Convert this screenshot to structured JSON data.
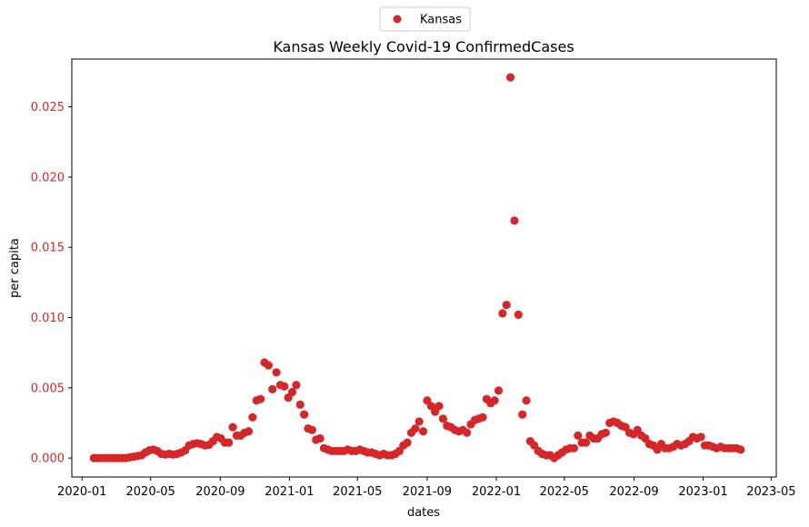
{
  "chart_data": {
    "type": "scatter",
    "title": "Kansas Weekly Covid-19 ConfirmedCases",
    "xlabel": "dates",
    "ylabel": "per capita",
    "legend": {
      "placement": "upper-center-outside",
      "entries": [
        "Kansas"
      ]
    },
    "grid": false,
    "colors": {
      "series": "#d62728",
      "ytick": "#d62728",
      "axis": "#000000"
    },
    "xlim": [
      "2019-12-14",
      "2023-05-10"
    ],
    "ylim": [
      -0.00135,
      0.0284
    ],
    "xticks": [
      {
        "date": "2020-01-01",
        "label": "2020-01"
      },
      {
        "date": "2020-05-01",
        "label": "2020-05"
      },
      {
        "date": "2020-09-01",
        "label": "2020-09"
      },
      {
        "date": "2021-01-01",
        "label": "2021-01"
      },
      {
        "date": "2021-05-01",
        "label": "2021-05"
      },
      {
        "date": "2021-09-01",
        "label": "2021-09"
      },
      {
        "date": "2022-01-01",
        "label": "2022-01"
      },
      {
        "date": "2022-05-01",
        "label": "2022-05"
      },
      {
        "date": "2022-09-01",
        "label": "2022-09"
      },
      {
        "date": "2023-01-01",
        "label": "2023-01"
      },
      {
        "date": "2023-05-01",
        "label": "2023-05"
      }
    ],
    "yticks": [
      {
        "value": 0.0,
        "label": "0.000"
      },
      {
        "value": 0.005,
        "label": "0.005"
      },
      {
        "value": 0.01,
        "label": "0.010"
      },
      {
        "value": 0.015,
        "label": "0.015"
      },
      {
        "value": 0.02,
        "label": "0.020"
      },
      {
        "value": 0.025,
        "label": "0.025"
      }
    ],
    "series": [
      {
        "name": "Kansas",
        "points": [
          [
            "2020-01-22",
            0.0
          ],
          [
            "2020-01-29",
            0.0
          ],
          [
            "2020-02-05",
            0.0
          ],
          [
            "2020-02-12",
            0.0
          ],
          [
            "2020-02-19",
            0.0
          ],
          [
            "2020-02-26",
            0.0
          ],
          [
            "2020-03-04",
            0.0
          ],
          [
            "2020-03-11",
            0.0
          ],
          [
            "2020-03-18",
            0.0
          ],
          [
            "2020-03-25",
            5e-05
          ],
          [
            "2020-04-01",
            0.0001
          ],
          [
            "2020-04-08",
            0.00015
          ],
          [
            "2020-04-15",
            0.0002
          ],
          [
            "2020-04-22",
            0.0004
          ],
          [
            "2020-04-29",
            0.00055
          ],
          [
            "2020-05-06",
            0.0006
          ],
          [
            "2020-05-13",
            0.0005
          ],
          [
            "2020-05-20",
            0.0003
          ],
          [
            "2020-05-27",
            0.00025
          ],
          [
            "2020-06-03",
            0.0003
          ],
          [
            "2020-06-10",
            0.00025
          ],
          [
            "2020-06-17",
            0.0003
          ],
          [
            "2020-06-24",
            0.0004
          ],
          [
            "2020-07-01",
            0.00055
          ],
          [
            "2020-07-08",
            0.0009
          ],
          [
            "2020-07-15",
            0.001
          ],
          [
            "2020-07-22",
            0.00105
          ],
          [
            "2020-07-29",
            0.001
          ],
          [
            "2020-08-05",
            0.0009
          ],
          [
            "2020-08-12",
            0.00095
          ],
          [
            "2020-08-19",
            0.0012
          ],
          [
            "2020-08-26",
            0.0015
          ],
          [
            "2020-09-02",
            0.0014
          ],
          [
            "2020-09-09",
            0.0011
          ],
          [
            "2020-09-16",
            0.0011
          ],
          [
            "2020-09-23",
            0.0022
          ],
          [
            "2020-09-30",
            0.0016
          ],
          [
            "2020-10-07",
            0.0016
          ],
          [
            "2020-10-14",
            0.0018
          ],
          [
            "2020-10-21",
            0.0019
          ],
          [
            "2020-10-28",
            0.0029
          ],
          [
            "2020-11-04",
            0.0041
          ],
          [
            "2020-11-11",
            0.0042
          ],
          [
            "2020-11-18",
            0.0068
          ],
          [
            "2020-11-25",
            0.0066
          ],
          [
            "2020-12-02",
            0.0049
          ],
          [
            "2020-12-09",
            0.0061
          ],
          [
            "2020-12-16",
            0.0052
          ],
          [
            "2020-12-23",
            0.0051
          ],
          [
            "2020-12-30",
            0.0043
          ],
          [
            "2021-01-06",
            0.0047
          ],
          [
            "2021-01-13",
            0.0052
          ],
          [
            "2021-01-20",
            0.0038
          ],
          [
            "2021-01-27",
            0.0031
          ],
          [
            "2021-02-03",
            0.0021
          ],
          [
            "2021-02-10",
            0.002
          ],
          [
            "2021-02-17",
            0.0013
          ],
          [
            "2021-02-24",
            0.0014
          ],
          [
            "2021-03-03",
            0.0007
          ],
          [
            "2021-03-10",
            0.0006
          ],
          [
            "2021-03-17",
            0.0005
          ],
          [
            "2021-03-24",
            0.0005
          ],
          [
            "2021-03-31",
            0.0005
          ],
          [
            "2021-04-07",
            0.0005
          ],
          [
            "2021-04-14",
            0.0006
          ],
          [
            "2021-04-21",
            0.0005
          ],
          [
            "2021-04-28",
            0.0005
          ],
          [
            "2021-05-05",
            0.0006
          ],
          [
            "2021-05-12",
            0.0005
          ],
          [
            "2021-05-19",
            0.0004
          ],
          [
            "2021-05-26",
            0.0004
          ],
          [
            "2021-06-02",
            0.0003
          ],
          [
            "2021-06-09",
            0.0002
          ],
          [
            "2021-06-16",
            0.0003
          ],
          [
            "2021-06-23",
            0.0002
          ],
          [
            "2021-06-30",
            0.0002
          ],
          [
            "2021-07-07",
            0.0003
          ],
          [
            "2021-07-14",
            0.0005
          ],
          [
            "2021-07-21",
            0.0009
          ],
          [
            "2021-07-28",
            0.0011
          ],
          [
            "2021-08-04",
            0.0018
          ],
          [
            "2021-08-11",
            0.0021
          ],
          [
            "2021-08-18",
            0.0026
          ],
          [
            "2021-08-25",
            0.0019
          ],
          [
            "2021-09-01",
            0.0041
          ],
          [
            "2021-09-08",
            0.0037
          ],
          [
            "2021-09-15",
            0.0033
          ],
          [
            "2021-09-22",
            0.0037
          ],
          [
            "2021-09-29",
            0.0028
          ],
          [
            "2021-10-06",
            0.0023
          ],
          [
            "2021-10-13",
            0.0022
          ],
          [
            "2021-10-20",
            0.002
          ],
          [
            "2021-10-27",
            0.0019
          ],
          [
            "2021-11-03",
            0.002
          ],
          [
            "2021-11-10",
            0.0018
          ],
          [
            "2021-11-17",
            0.0024
          ],
          [
            "2021-11-24",
            0.0027
          ],
          [
            "2021-12-01",
            0.0028
          ],
          [
            "2021-12-08",
            0.0029
          ],
          [
            "2021-12-15",
            0.0042
          ],
          [
            "2021-12-22",
            0.0039
          ],
          [
            "2021-12-29",
            0.0041
          ],
          [
            "2022-01-05",
            0.0048
          ],
          [
            "2022-01-12",
            0.0103
          ],
          [
            "2022-01-19",
            0.0109
          ],
          [
            "2022-01-26",
            0.0271
          ],
          [
            "2022-02-02",
            0.0169
          ],
          [
            "2022-02-09",
            0.0102
          ],
          [
            "2022-02-16",
            0.0031
          ],
          [
            "2022-02-23",
            0.0041
          ],
          [
            "2022-03-02",
            0.0012
          ],
          [
            "2022-03-09",
            0.0009
          ],
          [
            "2022-03-16",
            0.0005
          ],
          [
            "2022-03-23",
            0.0003
          ],
          [
            "2022-03-30",
            0.0002
          ],
          [
            "2022-04-06",
            0.0002
          ],
          [
            "2022-04-13",
            0.0
          ],
          [
            "2022-04-20",
            0.0002
          ],
          [
            "2022-04-27",
            0.0004
          ],
          [
            "2022-05-04",
            0.0006
          ],
          [
            "2022-05-11",
            0.0007
          ],
          [
            "2022-05-18",
            0.0007
          ],
          [
            "2022-05-25",
            0.0016
          ],
          [
            "2022-06-01",
            0.0011
          ],
          [
            "2022-06-08",
            0.0011
          ],
          [
            "2022-06-15",
            0.0016
          ],
          [
            "2022-06-22",
            0.0014
          ],
          [
            "2022-06-29",
            0.0014
          ],
          [
            "2022-07-06",
            0.0017
          ],
          [
            "2022-07-13",
            0.0018
          ],
          [
            "2022-07-20",
            0.0025
          ],
          [
            "2022-07-27",
            0.0026
          ],
          [
            "2022-08-03",
            0.0025
          ],
          [
            "2022-08-10",
            0.0023
          ],
          [
            "2022-08-17",
            0.0022
          ],
          [
            "2022-08-24",
            0.0018
          ],
          [
            "2022-08-31",
            0.0017
          ],
          [
            "2022-09-07",
            0.002
          ],
          [
            "2022-09-14",
            0.0016
          ],
          [
            "2022-09-21",
            0.0014
          ],
          [
            "2022-09-28",
            0.001
          ],
          [
            "2022-10-05",
            0.0009
          ],
          [
            "2022-10-12",
            0.0006
          ],
          [
            "2022-10-19",
            0.001
          ],
          [
            "2022-10-26",
            0.0007
          ],
          [
            "2022-11-02",
            0.0007
          ],
          [
            "2022-11-09",
            0.0008
          ],
          [
            "2022-11-16",
            0.001
          ],
          [
            "2022-11-23",
            0.0009
          ],
          [
            "2022-11-30",
            0.001
          ],
          [
            "2022-12-07",
            0.0012
          ],
          [
            "2022-12-14",
            0.0015
          ],
          [
            "2022-12-21",
            0.0014
          ],
          [
            "2022-12-28",
            0.0015
          ],
          [
            "2023-01-04",
            0.0009
          ],
          [
            "2023-01-11",
            0.0009
          ],
          [
            "2023-01-18",
            0.0008
          ],
          [
            "2023-01-25",
            0.0007
          ],
          [
            "2023-02-01",
            0.0008
          ],
          [
            "2023-02-08",
            0.0007
          ],
          [
            "2023-02-15",
            0.0007
          ],
          [
            "2023-02-22",
            0.0007
          ],
          [
            "2023-03-01",
            0.0007
          ],
          [
            "2023-03-08",
            0.0006
          ]
        ]
      }
    ]
  }
}
